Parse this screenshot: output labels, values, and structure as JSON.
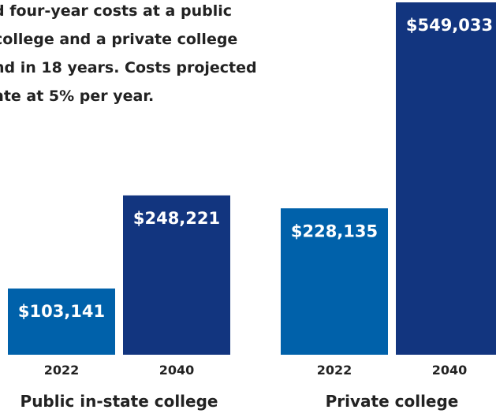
{
  "chart_data": {
    "type": "bar",
    "title_lines": [
      "d four-year costs at a public",
      "college and a private college",
      "nd in 18 years. Costs projected",
      "ate at 5% per year."
    ],
    "groups": [
      {
        "name": "Public in-state college",
        "bars": [
          {
            "category": "2022",
            "value": 103141,
            "label": "$103,141",
            "color": "#0061aa"
          },
          {
            "category": "2040",
            "value": 248221,
            "label": "$248,221",
            "color": "#12357f"
          }
        ]
      },
      {
        "name": "Private college",
        "bars": [
          {
            "category": "2022",
            "value": 228135,
            "label": "$228,135",
            "color": "#0061aa"
          },
          {
            "category": "2040",
            "value": 549033,
            "label": "$549,033",
            "color": "#12357f"
          }
        ]
      }
    ],
    "colors": {
      "year_2022": "#0061aa",
      "year_2040": "#12357f"
    },
    "xlabel": "",
    "ylabel": "",
    "grid": false,
    "legend": "none"
  }
}
